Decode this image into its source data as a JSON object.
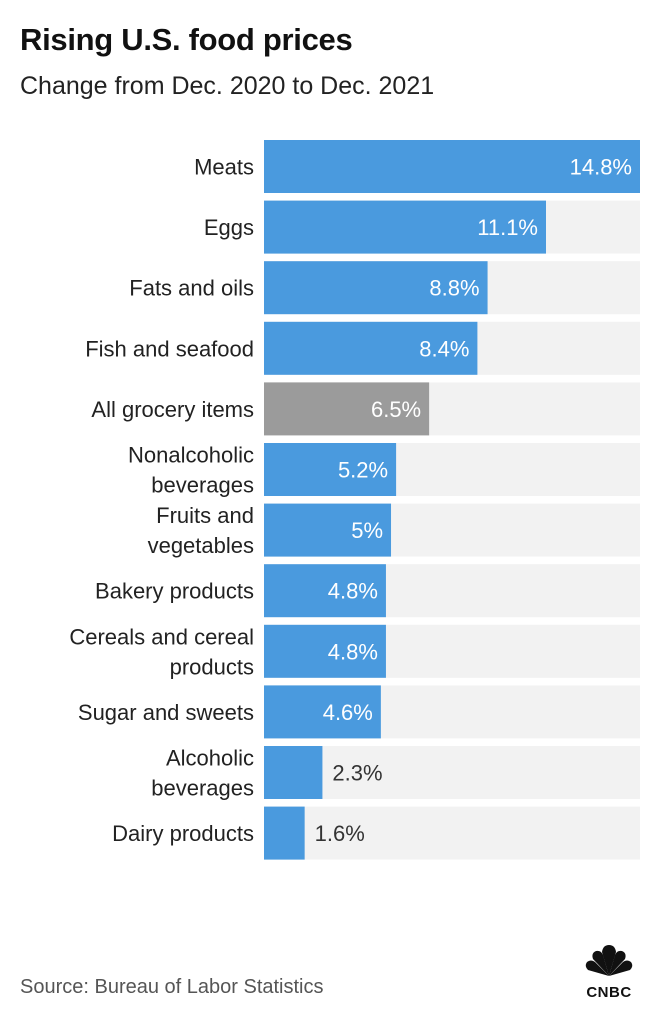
{
  "header": {
    "title": "Rising U.S. food prices",
    "subtitle": "Change from Dec. 2020 to Dec. 2021"
  },
  "footer": {
    "source": "Source: Bureau of Labor Statistics",
    "logo_text": "CNBC"
  },
  "colors": {
    "bar": "#4a9ade",
    "highlight": "#9b9b9b",
    "track": "#f2f2f2",
    "label_inside": "#ffffff",
    "label_outside": "#333333"
  },
  "chart_data": {
    "type": "bar",
    "orientation": "horizontal",
    "title": "Rising U.S. food prices",
    "subtitle": "Change from Dec. 2020 to Dec. 2021",
    "categories": [
      [
        "Meats"
      ],
      [
        "Eggs"
      ],
      [
        "Fats and oils"
      ],
      [
        "Fish and seafood"
      ],
      [
        "All grocery items"
      ],
      [
        "Nonalcoholic",
        "beverages"
      ],
      [
        "Fruits and",
        "vegetables"
      ],
      [
        "Bakery products"
      ],
      [
        "Cereals and cereal",
        "products"
      ],
      [
        "Sugar and sweets"
      ],
      [
        "Alcoholic",
        "beverages"
      ],
      [
        "Dairy products"
      ]
    ],
    "values": [
      14.8,
      11.1,
      8.8,
      8.4,
      6.5,
      5.2,
      5,
      4.8,
      4.8,
      4.6,
      2.3,
      1.6
    ],
    "value_labels": [
      "14.8%",
      "11.1%",
      "8.8%",
      "8.4%",
      "6.5%",
      "5.2%",
      "5%",
      "4.8%",
      "4.8%",
      "4.6%",
      "2.3%",
      "1.6%"
    ],
    "highlight_index": 4,
    "xlim": [
      0,
      14.8
    ],
    "grid": false,
    "legend": "none"
  }
}
